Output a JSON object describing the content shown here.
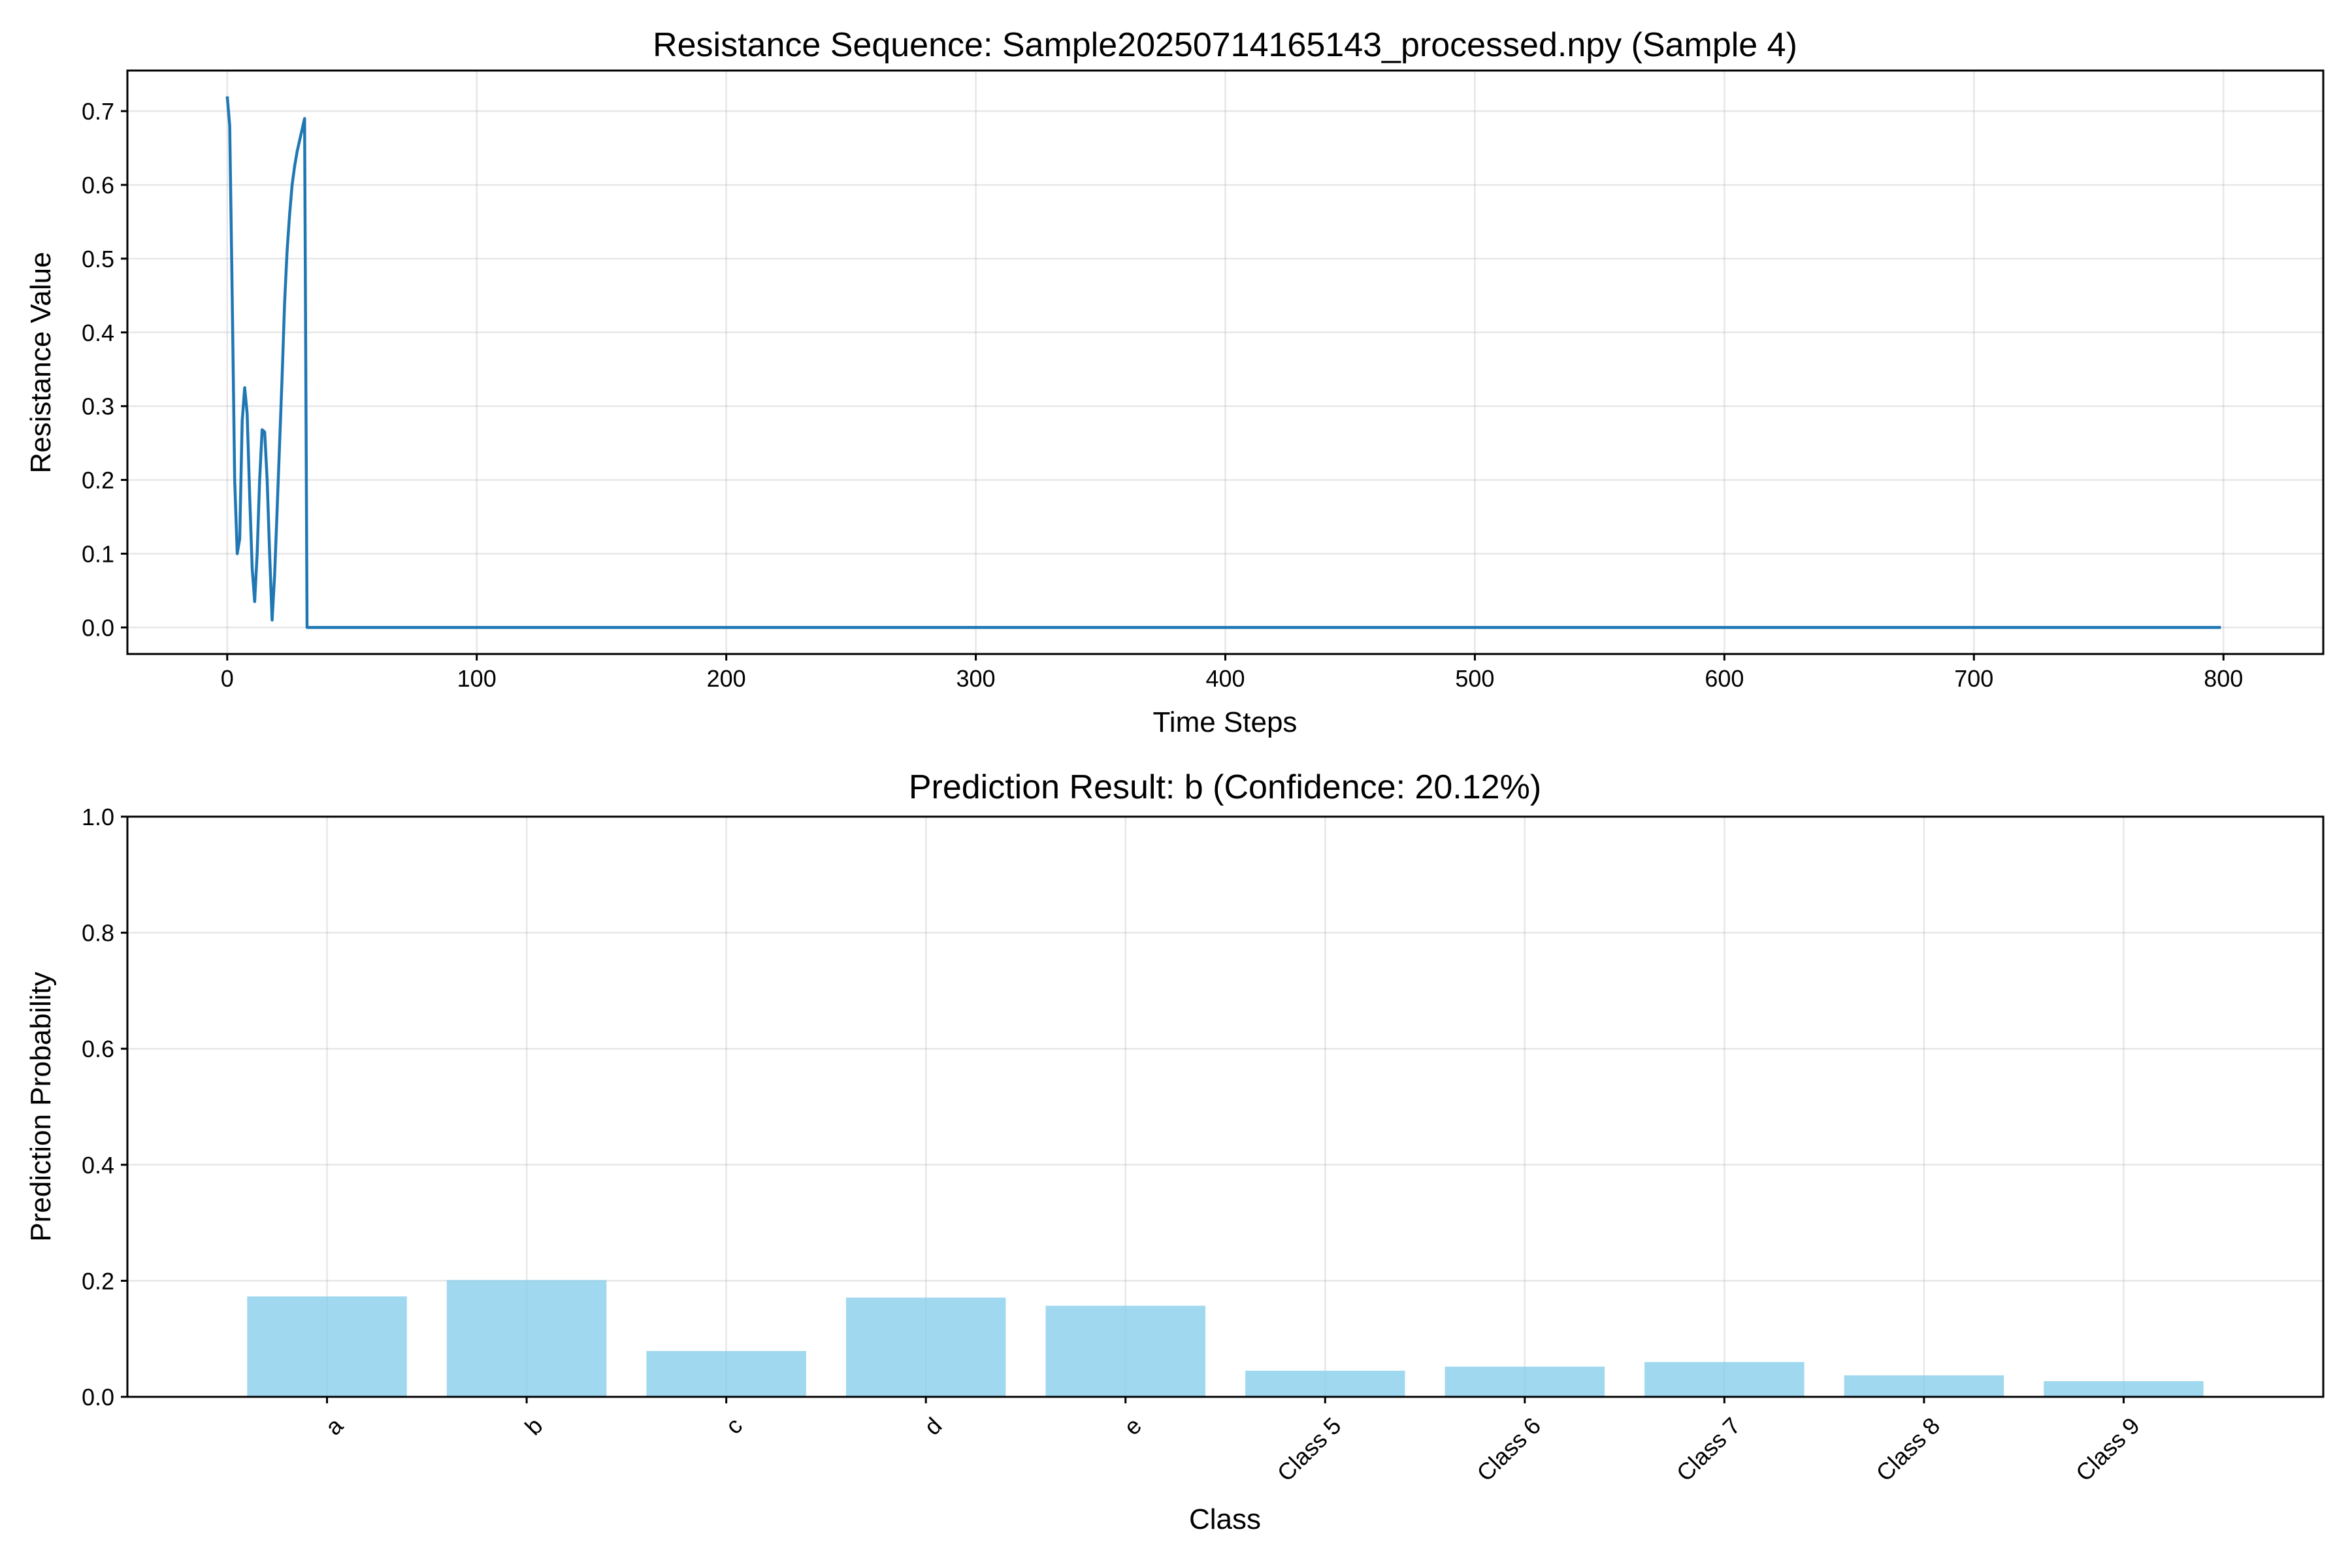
{
  "chart_data": [
    {
      "type": "line",
      "title": "Resistance Sequence: Sample20250714165143_processed.npy (Sample 4)",
      "xlabel": "Time Steps",
      "ylabel": "Resistance Value",
      "xlim": [
        -40,
        840
      ],
      "ylim": [
        -0.036,
        0.755
      ],
      "xticks": [
        0,
        100,
        200,
        300,
        400,
        500,
        600,
        700,
        800
      ],
      "yticks": [
        0.0,
        0.1,
        0.2,
        0.3,
        0.4,
        0.5,
        0.6,
        0.7
      ],
      "grid": true,
      "color": "#1f77b4",
      "series": [
        {
          "x": [
            0,
            1,
            2,
            3,
            4,
            5,
            6,
            7,
            8,
            9,
            10,
            11,
            12,
            13,
            14,
            15,
            16,
            17,
            18,
            19,
            20,
            21,
            22,
            23,
            24,
            25,
            26,
            27,
            28,
            29,
            30,
            31,
            32,
            33,
            799
          ],
          "y": [
            0.72,
            0.68,
            0.45,
            0.2,
            0.1,
            0.12,
            0.28,
            0.325,
            0.29,
            0.18,
            0.08,
            0.035,
            0.1,
            0.2,
            0.268,
            0.265,
            0.2,
            0.1,
            0.01,
            0.07,
            0.16,
            0.25,
            0.34,
            0.44,
            0.51,
            0.56,
            0.6,
            0.625,
            0.645,
            0.66,
            0.675,
            0.69,
            0.0,
            0.0,
            0.0
          ]
        }
      ]
    },
    {
      "type": "bar",
      "title": "Prediction Result: b (Confidence: 20.12%)",
      "xlabel": "Class",
      "ylabel": "Prediction Probability",
      "ylim": [
        0,
        1.0
      ],
      "yticks": [
        0.0,
        0.2,
        0.4,
        0.6,
        0.8,
        1.0
      ],
      "grid": true,
      "color": "#87ceeb",
      "categories": [
        "a",
        "b",
        "c",
        "d",
        "e",
        "Class 5",
        "Class 6",
        "Class 7",
        "Class 8",
        "Class 9"
      ],
      "values": [
        0.173,
        0.2012,
        0.079,
        0.171,
        0.157,
        0.045,
        0.052,
        0.06,
        0.037,
        0.027
      ]
    }
  ]
}
